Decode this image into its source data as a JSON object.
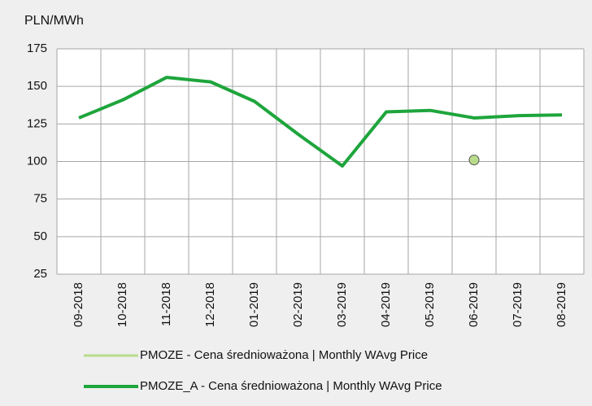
{
  "chart_data": {
    "type": "line",
    "y_axis_label": "PLN/MWh",
    "categories": [
      "09-2018",
      "10-2018",
      "11-2018",
      "12-2018",
      "01-2019",
      "02-2019",
      "03-2019",
      "04-2019",
      "05-2019",
      "06-2019",
      "07-2019",
      "08-2019"
    ],
    "series": [
      {
        "name": "PMOZE  -  Cena średnioważona | Monthly WAvg Price",
        "color": "#b9dc8c",
        "values": [
          null,
          null,
          null,
          null,
          null,
          null,
          null,
          null,
          null,
          101,
          null,
          null
        ]
      },
      {
        "name": "PMOZE_A  -  Cena średnioważona | Monthly WAvg Price",
        "color": "#1ea53c",
        "values": [
          129,
          141,
          156,
          153,
          140,
          118,
          97,
          133,
          134,
          129,
          130.5,
          131
        ]
      }
    ],
    "ylim": [
      25,
      175
    ],
    "yticks": [
      25,
      50,
      75,
      100,
      125,
      150,
      175
    ],
    "grid": true
  }
}
